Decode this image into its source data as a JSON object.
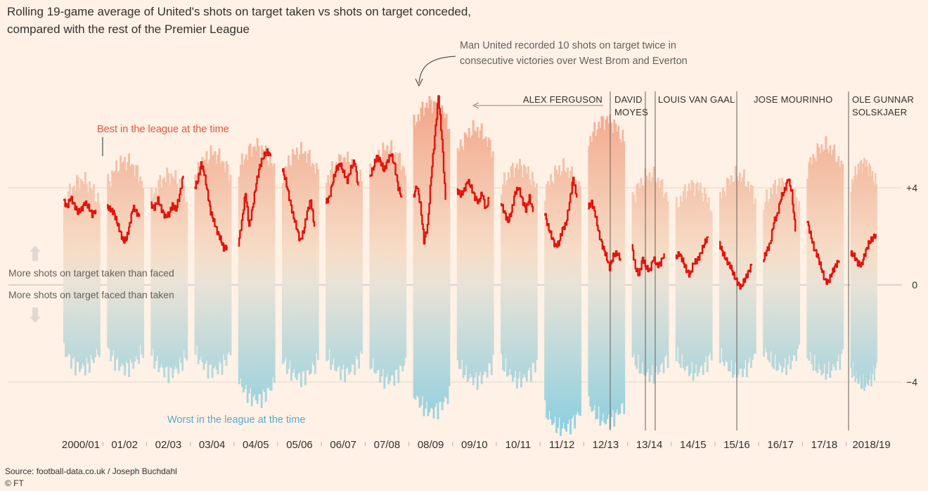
{
  "title": {
    "line1": "Rolling 19-game average of United's shots on target taken vs shots on target conceded,",
    "line2": "compared with the rest of the Premier League"
  },
  "annotations": {
    "record_line1": "Man United recorded 10 shots on target twice in",
    "record_line2": "consecutive victories over West Brom and Everton",
    "best": "Best in the league at the time",
    "worst": "Worst in the league at the time",
    "more_taken": "More shots on target taken than faced",
    "more_faced": "More shots on target faced than taken"
  },
  "managers": [
    {
      "lines": [
        "ALEX FERGUSON"
      ],
      "season_index": 12
    },
    {
      "lines": [
        "DAVID",
        "MOYES"
      ],
      "season_index": 13
    },
    {
      "lines": [
        "LOUIS VAN GAAL"
      ],
      "season_index": 14
    },
    {
      "lines": [
        "JOSE MOURINHO"
      ],
      "season_index": 16
    },
    {
      "lines": [
        "OLE GUNNAR",
        "SOLSKJAER"
      ],
      "season_index": 18
    }
  ],
  "source": "Source: football-data.co.uk / Joseph Buchdahl",
  "credit": "© FT",
  "colors": {
    "united_line": "#e3120b",
    "best": "#e8543c",
    "worst": "#5aa9c9",
    "band_top": "#f2a88c",
    "band_mid": "#f6dcc6",
    "band_bottom": "#8ecfdf",
    "background": "#fff1e5"
  },
  "chart_data": {
    "type": "line",
    "x_categories": [
      "2000/01",
      "01/02",
      "02/03",
      "03/04",
      "04/05",
      "05/06",
      "06/07",
      "07/08",
      "08/09",
      "09/10",
      "10/11",
      "11/12",
      "12/13",
      "13/14",
      "14/15",
      "15/16",
      "16/17",
      "17/18",
      "2018/19"
    ],
    "ylim": [
      -4.8,
      6.4
    ],
    "y_ticks": [
      {
        "value": 4,
        "label": "+4"
      },
      {
        "value": 0,
        "label": "0"
      },
      {
        "value": -4,
        "label": "−4"
      }
    ],
    "grid": true,
    "series": [
      {
        "name": "Man United",
        "per_season": [
          [
            3.5,
            3.2,
            3.6,
            3.3,
            3.0,
            3.1,
            3.4,
            3.2,
            2.9,
            3.1
          ],
          [
            3.2,
            3.1,
            3.0,
            2.6,
            2.2,
            1.8,
            1.9,
            2.5,
            3.2,
            3.0,
            2.8
          ],
          [
            3.3,
            3.2,
            3.5,
            3.1,
            2.8,
            2.9,
            3.3,
            3.1,
            3.7,
            4.5
          ],
          [
            4.0,
            4.3,
            5.0,
            4.6,
            3.8,
            3.0,
            2.6,
            2.2,
            1.9,
            1.5,
            1.6
          ],
          [
            1.7,
            2.6,
            3.8,
            2.4,
            3.2,
            4.2,
            4.9,
            5.3,
            5.5,
            5.3
          ],
          [
            4.8,
            4.3,
            3.6,
            2.9,
            2.4,
            1.8,
            2.2,
            3.0,
            3.5,
            2.4
          ],
          [
            3.4,
            3.6,
            4.3,
            4.8,
            5.0,
            4.6,
            4.3,
            4.8,
            5.1,
            4.1
          ],
          [
            4.4,
            4.8,
            5.3,
            5.1,
            4.7,
            5.1,
            5.4,
            4.9,
            4.0,
            3.6
          ],
          [
            3.6,
            4.1,
            3.3,
            1.8,
            2.4,
            4.5,
            6.1,
            7.8,
            6.0,
            3.5
          ],
          [
            3.9,
            3.7,
            3.9,
            4.3,
            4.0,
            3.6,
            3.4,
            3.8,
            3.1,
            3.6
          ],
          [
            3.4,
            3.0,
            2.6,
            3.0,
            3.8,
            4.0,
            3.5,
            3.1,
            3.6,
            3.0
          ],
          [
            3.0,
            2.4,
            2.0,
            1.6,
            1.7,
            2.3,
            2.5,
            3.4,
            4.4,
            3.6
          ],
          [
            3.2,
            3.4,
            2.9,
            2.1,
            1.6,
            1.2,
            0.7,
            1.2,
            1.3,
            1.1
          ],
          [
            1.6,
            0.7,
            0.4,
            1.1,
            0.7,
            0.6,
            1.1,
            0.8,
            0.9,
            1.3
          ],
          [
            1.1,
            1.3,
            1.0,
            0.6,
            0.4,
            0.9,
            1.0,
            1.3,
            1.7,
            2.0
          ],
          [
            1.7,
            1.3,
            1.0,
            0.8,
            0.4,
            0.1,
            -0.1,
            0.2,
            0.5,
            0.8
          ],
          [
            1.0,
            1.4,
            1.7,
            2.6,
            2.9,
            3.6,
            3.9,
            4.4,
            3.8,
            2.2
          ],
          [
            2.7,
            2.1,
            1.5,
            1.2,
            0.7,
            0.2,
            0.1,
            0.5,
            0.8,
            1.0
          ],
          [
            1.3,
            1.2,
            0.9,
            0.8,
            1.3,
            1.7,
            1.9,
            2.1
          ]
        ]
      },
      {
        "name": "Best in the league at the time",
        "per_season": [
          4.3,
          5.1,
          4.5,
          5.4,
          5.7,
          5.5,
          5.2,
          5.6,
          7.5,
          6.4,
          4.9,
          4.8,
          6.8,
          4.5,
          4.1,
          4.5,
          4.2,
          5.7,
          5.0
        ]
      },
      {
        "name": "Worst in the league at the time",
        "per_season": [
          -3.4,
          -3.4,
          -3.6,
          -3.5,
          -4.7,
          -3.8,
          -3.6,
          -3.9,
          -5.2,
          -3.9,
          -3.9,
          -5.9,
          -5.6,
          -3.7,
          -3.6,
          -3.6,
          -3.4,
          -3.6,
          -4.1
        ]
      }
    ]
  }
}
